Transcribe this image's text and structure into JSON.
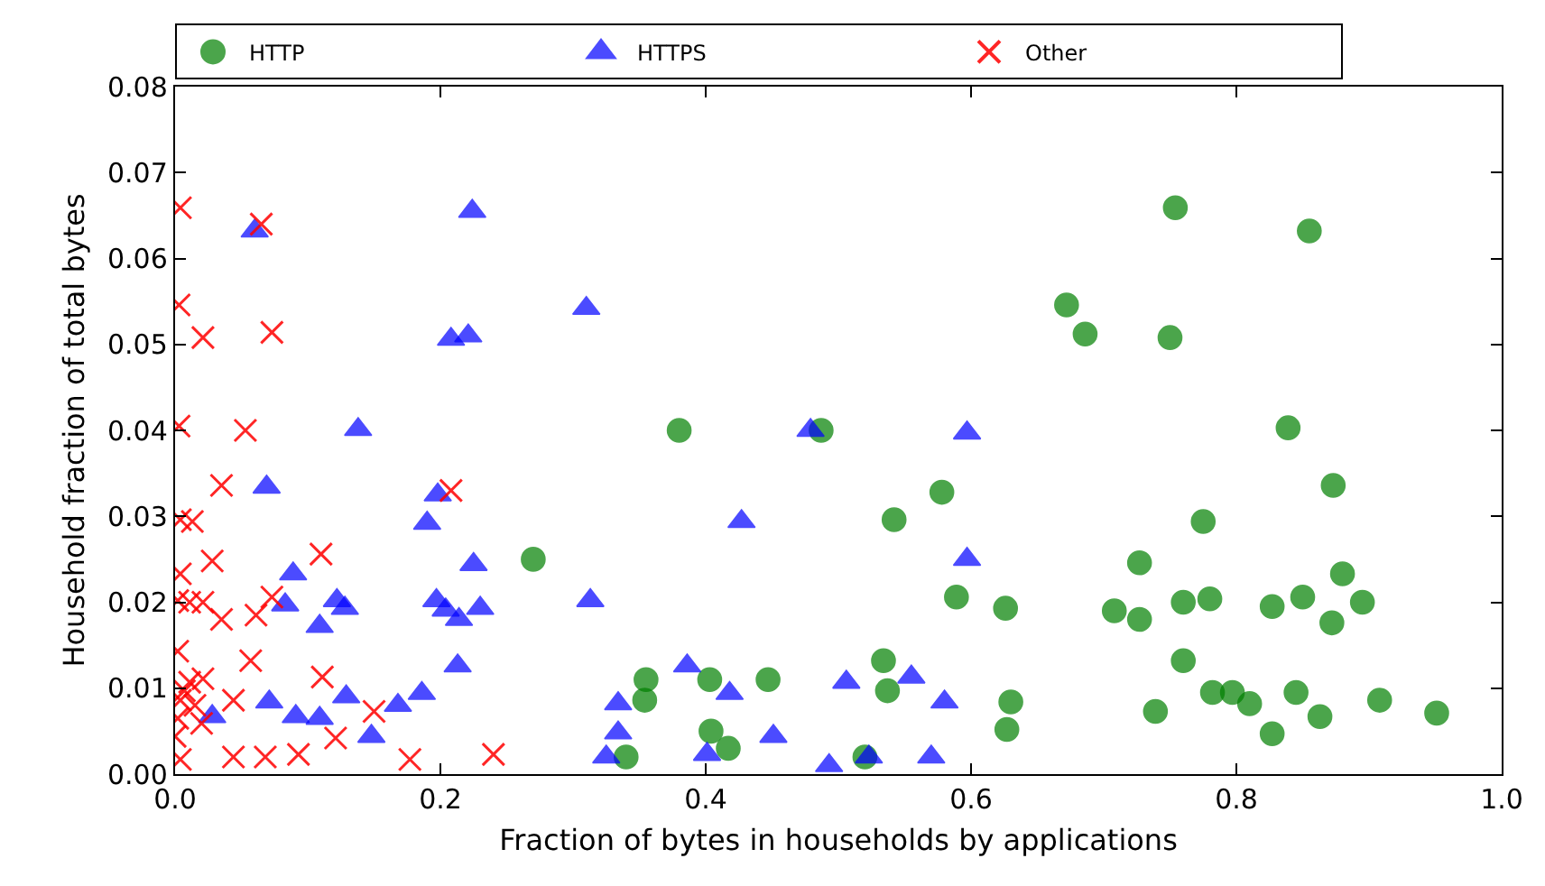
{
  "chart_data": {
    "type": "scatter",
    "xlabel": "Fraction of bytes in households by applications",
    "ylabel": "Household fraction of total bytes",
    "xlim": [
      0,
      1
    ],
    "ylim": [
      0,
      0.08
    ],
    "xticks": [
      {
        "value": 0,
        "label": "0.0"
      },
      {
        "value": 0.2,
        "label": "0.2"
      },
      {
        "value": 0.4,
        "label": "0.4"
      },
      {
        "value": 0.6,
        "label": "0.6"
      },
      {
        "value": 0.8,
        "label": "0.8"
      },
      {
        "value": 1,
        "label": "1.0"
      }
    ],
    "yticks": [
      {
        "value": 0,
        "label": "0.00"
      },
      {
        "value": 0.01,
        "label": "0.01"
      },
      {
        "value": 0.02,
        "label": "0.02"
      },
      {
        "value": 0.03,
        "label": "0.03"
      },
      {
        "value": 0.04,
        "label": "0.04"
      },
      {
        "value": 0.05,
        "label": "0.05"
      },
      {
        "value": 0.06,
        "label": "0.06"
      },
      {
        "value": 0.07,
        "label": "0.07"
      },
      {
        "value": 0.08,
        "label": "0.08"
      }
    ],
    "grid": false,
    "legend": "top",
    "series": [
      {
        "name": "HTTP",
        "color": "#008000",
        "marker": "circle",
        "x": [
          0.27,
          0.38,
          0.487,
          0.355,
          0.354,
          0.34,
          0.403,
          0.404,
          0.417,
          0.447,
          0.52,
          0.542,
          0.578,
          0.589,
          0.626,
          0.534,
          0.537,
          0.63,
          0.627,
          0.672,
          0.686,
          0.75,
          0.754,
          0.727,
          0.708,
          0.727,
          0.739,
          0.76,
          0.76,
          0.855,
          0.839,
          0.873,
          0.775,
          0.78,
          0.827,
          0.85,
          0.88,
          0.895,
          0.872,
          0.782,
          0.797,
          0.81,
          0.827,
          0.845,
          0.863,
          0.908,
          0.951
        ],
        "values": [
          0.025,
          0.04,
          0.04,
          0.011,
          0.0086,
          0.002,
          0.011,
          0.005,
          0.003,
          0.011,
          0.002,
          0.0296,
          0.0328,
          0.0206,
          0.0193,
          0.0132,
          0.0097,
          0.0084,
          0.0052,
          0.0546,
          0.0512,
          0.0508,
          0.0659,
          0.0246,
          0.019,
          0.018,
          0.0073,
          0.02,
          0.0132,
          0.0632,
          0.0403,
          0.0336,
          0.0294,
          0.0204,
          0.0195,
          0.0206,
          0.0233,
          0.02,
          0.0176,
          0.0095,
          0.0095,
          0.0082,
          0.0047,
          0.0095,
          0.0067,
          0.0086,
          0.0071
        ]
      },
      {
        "name": "HTTPS",
        "color": "#0000ff",
        "marker": "triangle",
        "x": [
          0.06,
          0.224,
          0.208,
          0.221,
          0.138,
          0.069,
          0.198,
          0.19,
          0.225,
          0.089,
          0.083,
          0.122,
          0.128,
          0.109,
          0.197,
          0.204,
          0.214,
          0.23,
          0.213,
          0.028,
          0.071,
          0.091,
          0.109,
          0.129,
          0.148,
          0.168,
          0.186,
          0.31,
          0.479,
          0.427,
          0.313,
          0.386,
          0.418,
          0.334,
          0.334,
          0.325,
          0.401,
          0.451,
          0.506,
          0.493,
          0.555,
          0.58,
          0.523,
          0.57,
          0.597,
          0.597
        ],
        "values": [
          0.0632,
          0.0655,
          0.0506,
          0.051,
          0.0401,
          0.0334,
          0.0325,
          0.0292,
          0.0244,
          0.0233,
          0.0197,
          0.0202,
          0.0193,
          0.0172,
          0.0202,
          0.0191,
          0.018,
          0.0193,
          0.0126,
          0.0067,
          0.0084,
          0.0067,
          0.0065,
          0.009,
          0.0044,
          0.008,
          0.0094,
          0.0542,
          0.04,
          0.0294,
          0.0202,
          0.0126,
          0.0094,
          0.0082,
          0.0048,
          0.002,
          0.0023,
          0.0044,
          0.0107,
          0.001,
          0.0113,
          0.0084,
          0.002,
          0.002,
          0.0397,
          0.025
        ]
      },
      {
        "name": "Other",
        "color": "#ff0000",
        "marker": "cross",
        "x": [
          0.004,
          0.065,
          0.003,
          0.021,
          0.073,
          0.003,
          0.053,
          0.035,
          0.004,
          0.013,
          0.208,
          0.028,
          0.11,
          0.004,
          0.002,
          0.011,
          0.021,
          0.035,
          0.061,
          0.073,
          0.002,
          0.057,
          0.111,
          0.011,
          0.021,
          0.004,
          0.015,
          0.044,
          0.002,
          0.02,
          0.15,
          0.121,
          0.004,
          0.044,
          0.068,
          0.093,
          0.177,
          0.24,
          0.007,
          0.0
        ],
        "values": [
          0.0659,
          0.064,
          0.0546,
          0.0508,
          0.0514,
          0.0405,
          0.04,
          0.0336,
          0.0296,
          0.0294,
          0.033,
          0.0248,
          0.0256,
          0.0233,
          0.0202,
          0.02,
          0.02,
          0.018,
          0.0185,
          0.0206,
          0.0143,
          0.0132,
          0.0113,
          0.0107,
          0.0111,
          0.0086,
          0.008,
          0.0086,
          0.0065,
          0.0059,
          0.0073,
          0.0042,
          0.0017,
          0.002,
          0.002,
          0.0023,
          0.0017,
          0.0023,
          0.0097,
          0.0044
        ]
      }
    ]
  }
}
